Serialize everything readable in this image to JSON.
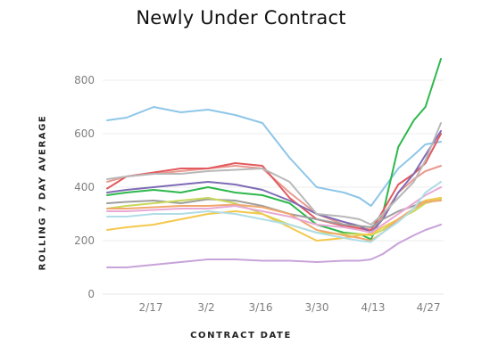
{
  "chart_data": {
    "type": "line",
    "title": "Newly Under Contract",
    "xlabel": "CONTRACT DATE",
    "ylabel": "ROLLING 7 DAY AVERAGE",
    "ylim": [
      0,
      900
    ],
    "yticks": [
      0,
      200,
      400,
      600,
      800
    ],
    "x_tick_labels": [
      "2/17",
      "3/2",
      "3/16",
      "3/30",
      "4/13",
      "4/27"
    ],
    "x": [
      "2/5",
      "2/10",
      "2/17",
      "2/24",
      "3/2",
      "3/9",
      "3/16",
      "3/23",
      "3/30",
      "4/6",
      "4/10",
      "4/13",
      "4/16",
      "4/20",
      "4/24",
      "4/27",
      "5/1"
    ],
    "grid": true,
    "series": [
      {
        "color": "#8ec6e8",
        "values": [
          650,
          660,
          700,
          680,
          690,
          670,
          640,
          510,
          400,
          380,
          360,
          330,
          390,
          470,
          520,
          560,
          570
        ]
      },
      {
        "color": "#2db84d",
        "values": [
          370,
          380,
          390,
          380,
          400,
          380,
          370,
          340,
          260,
          230,
          225,
          205,
          300,
          550,
          650,
          700,
          880
        ]
      },
      {
        "color": "#e9998f",
        "values": [
          420,
          440,
          450,
          460,
          470,
          480,
          470,
          380,
          300,
          260,
          250,
          240,
          290,
          380,
          430,
          460,
          480
        ]
      },
      {
        "color": "#e25a5f",
        "values": [
          395,
          440,
          455,
          470,
          470,
          490,
          480,
          360,
          280,
          255,
          245,
          240,
          310,
          410,
          450,
          490,
          600
        ]
      },
      {
        "color": "#7e6bb5",
        "values": [
          380,
          390,
          400,
          410,
          420,
          410,
          390,
          350,
          300,
          270,
          255,
          230,
          280,
          380,
          450,
          520,
          610
        ]
      },
      {
        "color": "#b8b8b8",
        "values": [
          430,
          440,
          450,
          450,
          460,
          465,
          470,
          420,
          300,
          290,
          280,
          260,
          300,
          360,
          420,
          500,
          640
        ]
      },
      {
        "color": "#9e9e9e",
        "values": [
          340,
          345,
          350,
          340,
          355,
          350,
          330,
          300,
          280,
          260,
          255,
          250,
          280,
          310,
          330,
          350,
          360
        ]
      },
      {
        "color": "#c9d85a",
        "values": [
          320,
          330,
          340,
          350,
          360,
          340,
          300,
          260,
          230,
          225,
          225,
          220,
          240,
          280,
          310,
          340,
          355
        ]
      },
      {
        "color": "#f4c84c",
        "values": [
          240,
          250,
          260,
          280,
          300,
          310,
          300,
          250,
          200,
          210,
          220,
          225,
          250,
          280,
          320,
          350,
          360
        ]
      },
      {
        "color": "#f0a86e",
        "values": [
          320,
          320,
          325,
          330,
          330,
          335,
          325,
          300,
          240,
          220,
          210,
          200,
          230,
          280,
          320,
          345,
          350
        ]
      },
      {
        "color": "#e8a9d5",
        "values": [
          310,
          310,
          315,
          320,
          320,
          330,
          310,
          290,
          260,
          250,
          240,
          230,
          260,
          300,
          340,
          370,
          400
        ]
      },
      {
        "color": "#b0dde6",
        "values": [
          290,
          290,
          300,
          300,
          310,
          300,
          280,
          260,
          230,
          210,
          200,
          195,
          230,
          270,
          320,
          380,
          420
        ]
      },
      {
        "color": "#c8a3d9",
        "values": [
          100,
          100,
          110,
          120,
          130,
          130,
          125,
          125,
          120,
          125,
          125,
          130,
          150,
          190,
          220,
          240,
          260
        ]
      }
    ]
  }
}
